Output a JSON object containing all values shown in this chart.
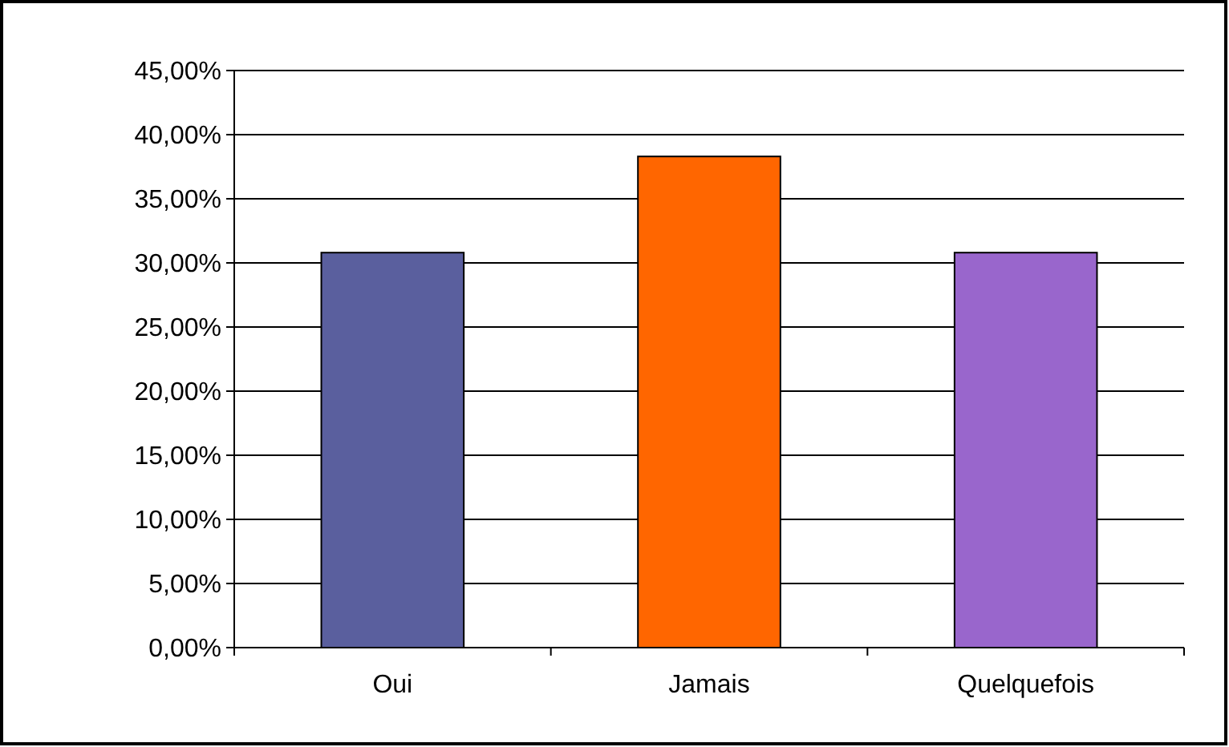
{
  "chart_data": {
    "type": "bar",
    "categories": [
      "Oui",
      "Jamais",
      "Quelquefois"
    ],
    "values": [
      30.8,
      38.3,
      30.8
    ],
    "colors": [
      "#5a5f9e",
      "#ff6600",
      "#9966cc"
    ],
    "ylim": [
      0,
      45
    ],
    "yticks": [
      {
        "value": 0,
        "label": "0,00%"
      },
      {
        "value": 5,
        "label": "5,00%"
      },
      {
        "value": 10,
        "label": "10,00%"
      },
      {
        "value": 15,
        "label": "15,00%"
      },
      {
        "value": 20,
        "label": "20,00%"
      },
      {
        "value": 25,
        "label": "25,00%"
      },
      {
        "value": 30,
        "label": "30,00%"
      },
      {
        "value": 35,
        "label": "35,00%"
      },
      {
        "value": 40,
        "label": "40,00%"
      },
      {
        "value": 45,
        "label": "45,00%"
      }
    ],
    "grid": "y"
  }
}
